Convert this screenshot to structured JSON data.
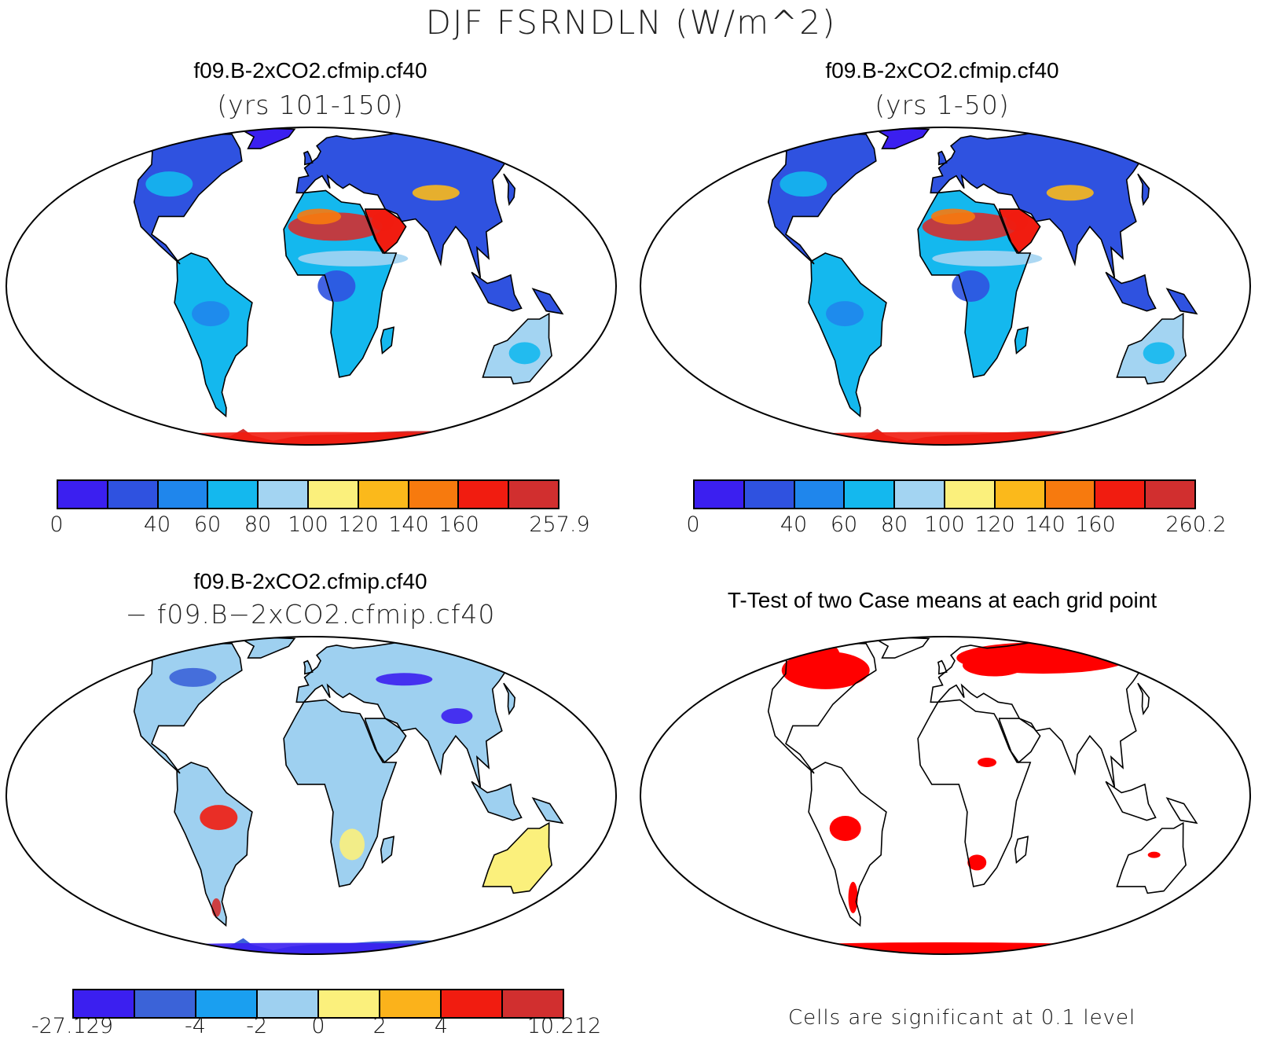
{
  "title": "DJF FSRNDLN (W/m^2)",
  "panels": [
    {
      "title": "f09.B-2xCO2.cfmip.cf40",
      "subtitle": "(yrs 101-150)"
    },
    {
      "title": "f09.B-2xCO2.cfmip.cf40",
      "subtitle": "(yrs 1-50)"
    },
    {
      "title": "f09.B-2xCO2.cfmip.cf40",
      "subtitle": "− f09.B−2xCO2.cfmip.cf40"
    },
    {
      "title": "T-Test of two Case means at each grid point",
      "subtitle": ""
    }
  ],
  "colorbars": [
    {
      "colors": [
        "#3b1ff0",
        "#2f52e0",
        "#1f86ec",
        "#14b8ee",
        "#a3d4f2",
        "#fbf07c",
        "#fbb91b",
        "#f77a0e",
        "#f11c10",
        "#d12f2f"
      ],
      "labels": [
        "0",
        "",
        "40",
        "60",
        "80",
        "100",
        "120",
        "140",
        "160",
        "",
        "257.9"
      ]
    },
    {
      "colors": [
        "#3b1ff0",
        "#2f52e0",
        "#1f86ec",
        "#14b8ee",
        "#a3d4f2",
        "#fbf07c",
        "#fbb91b",
        "#f77a0e",
        "#f11c10",
        "#d12f2f"
      ],
      "labels": [
        "0",
        "",
        "40",
        "60",
        "80",
        "100",
        "120",
        "140",
        "160",
        "",
        "260.2"
      ]
    },
    {
      "colors": [
        "#3b1ff0",
        "#3b63d8",
        "#1a9ff0",
        "#9ed0f0",
        "#fbf07c",
        "#fbb21b",
        "#f11c10",
        "#d12f2f"
      ],
      "labels": [
        "-27.129",
        "",
        "-4",
        "-2",
        "0",
        "2",
        "4",
        "",
        "10.212"
      ]
    }
  ],
  "significance_note": "Cells are significant at 0.1 level",
  "significance_color": "#ff0000"
}
